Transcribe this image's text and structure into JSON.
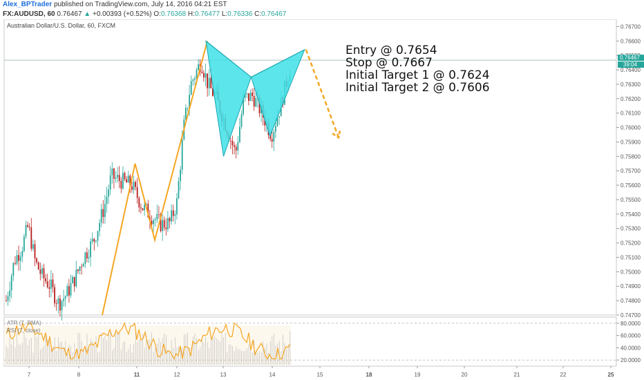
{
  "header": {
    "author": "Alex_BPTrader",
    "published": "published on TradingView.com, July 14, 2016 04:21 EST",
    "symbol_line": "FX:AUDUSD, 60",
    "last": "0.76467",
    "arrow": "▲",
    "change": "+0.00393 (+0.52%)",
    "o_label": "O:",
    "o_val": "0.76368",
    "h_label": "H:",
    "h_val": "0.76477",
    "l_label": "L:",
    "l_val": "0.76336",
    "c_label": "C:",
    "c_val": "0.76467"
  },
  "annotations": [
    "Entry @ 0.7654",
    "Stop @ 0.7667",
    "Initial Target 1 @ 0.7624",
    "Initial Target 2 @ 0.7606"
  ],
  "colors": {
    "up_candle": "#26a69a",
    "down_candle": "#b71c1c",
    "pattern_fill": "#3fe0e8",
    "zigzag": "#f5a623",
    "rsi_line": "#f5a623",
    "price_badge": "#26a69a"
  },
  "chart_data": [
    {
      "type": "candlestick",
      "title": "Australian Dollar/U.S. Dollar, 60, FXCM",
      "ylim": [
        0.747,
        0.7675
      ],
      "y_ticks": [
        "0.76700",
        "0.76600",
        "0.76500",
        "0.76400",
        "0.76300",
        "0.76200",
        "0.76100",
        "0.76000",
        "0.75900",
        "0.75800",
        "0.75700",
        "0.75600",
        "0.75500",
        "0.75400",
        "0.75300",
        "0.75200",
        "0.75100",
        "0.75000",
        "0.74900",
        "0.74800",
        "0.74700"
      ],
      "x_ticks": [
        "7",
        "8",
        "11",
        "12",
        "13",
        "14",
        "15",
        "18",
        "19",
        "20",
        "21",
        "22",
        "25"
      ],
      "x_ticks_bold": [
        "11",
        "18",
        "25"
      ],
      "last_price_label": "0.76467",
      "countdown_label": "39:04",
      "last_price": 0.76467,
      "pattern_points": [
        {
          "x": 0.0,
          "y": 0.766
        },
        {
          "x": 0.15,
          "y": 0.758
        },
        {
          "x": 0.385,
          "y": 0.7635
        },
        {
          "x": 0.545,
          "y": 0.7594
        },
        {
          "x": 0.84,
          "y": 0.7654
        }
      ],
      "projection": {
        "from": [
          0.84,
          0.7654
        ],
        "to": [
          1.13,
          0.7593
        ]
      },
      "zigzag_points": [
        {
          "t": 0.0,
          "y": 0.747
        },
        {
          "t": 1.0,
          "y": 0.7575
        },
        {
          "t": 1.6,
          "y": 0.7522
        },
        {
          "t": 3.2,
          "y": 0.766
        }
      ]
    },
    {
      "type": "line",
      "title": "ATR (7, RMA)",
      "series": [
        {
          "name": "RSI (7, close)"
        }
      ],
      "ylim": [
        10,
        90
      ],
      "y_ticks": [
        "80.0000",
        "60.0000",
        "40.0000",
        "20.0000"
      ]
    }
  ]
}
